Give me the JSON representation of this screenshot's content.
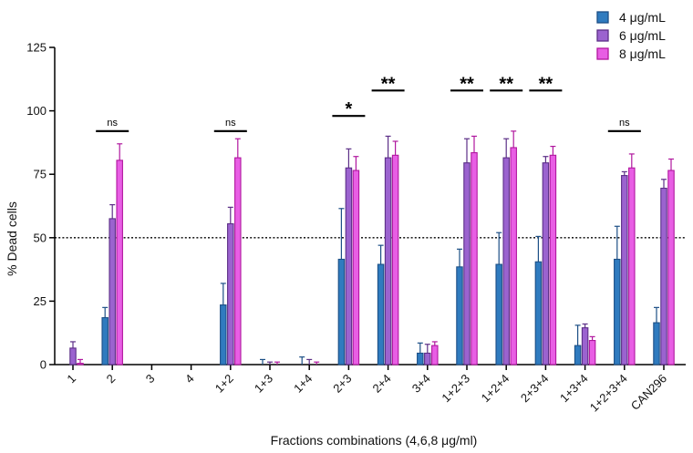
{
  "chart_data": {
    "type": "bar",
    "title": "",
    "xlabel": "Fractions combinations (4,6,8 μg/ml)",
    "ylabel": "% Dead cells",
    "ylim": [
      0,
      125
    ],
    "yticks": [
      0,
      25,
      50,
      75,
      100,
      125
    ],
    "reference_line": 50,
    "categories": [
      "1",
      "2",
      "3",
      "4",
      "1+2",
      "1+3",
      "1+4",
      "2+3",
      "2+4",
      "3+4",
      "1+2+3",
      "1+2+4",
      "2+3+4",
      "1+3+4",
      "1+2+3+4",
      "CAN296"
    ],
    "series": [
      {
        "name": "4 μg/mL",
        "color": "#2f7bbf",
        "edge": "#1c4f86",
        "values": [
          0,
          18.5,
          0,
          0,
          23.5,
          0,
          0,
          41.5,
          39.5,
          4.5,
          38.5,
          39.5,
          40.5,
          7.5,
          41.5,
          16.5
        ],
        "errors": [
          0,
          4,
          0,
          0,
          8.5,
          2,
          3,
          20,
          7.5,
          4,
          7,
          12.5,
          10,
          8,
          13,
          6
        ]
      },
      {
        "name": "6 μg/mL",
        "color": "#9b63cf",
        "edge": "#5c2f87",
        "values": [
          6.5,
          57.5,
          0,
          0,
          55.5,
          0,
          0,
          77.5,
          81.5,
          4.5,
          79.5,
          81.5,
          79.5,
          14.5,
          74.5,
          69.5
        ],
        "errors": [
          2.5,
          5.5,
          0,
          0,
          6.5,
          1,
          2,
          7.5,
          8.5,
          3.5,
          9.5,
          7.5,
          2.5,
          1.5,
          1.5,
          3.5
        ]
      },
      {
        "name": "8 μg/mL",
        "color": "#e85ee4",
        "edge": "#b0179e",
        "values": [
          0.5,
          80.5,
          0,
          0,
          81.5,
          0,
          0,
          76.5,
          82.5,
          7.5,
          83.5,
          85.5,
          82.5,
          9.5,
          77.5,
          76.5
        ],
        "errors": [
          1.5,
          6.5,
          0,
          0,
          7.5,
          1,
          1,
          5.5,
          5.5,
          1.5,
          6.5,
          6.5,
          3.5,
          1.5,
          5.5,
          4.5
        ]
      }
    ],
    "significance": [
      {
        "from": "2",
        "to": "2",
        "y": 92,
        "label": "ns"
      },
      {
        "from": "1+2",
        "to": "1+2",
        "y": 92,
        "label": "ns"
      },
      {
        "from": "2+3",
        "to": "2+3",
        "y": 98,
        "label": "*"
      },
      {
        "from": "2+4",
        "to": "2+4",
        "y": 108,
        "label": "**"
      },
      {
        "from": "1+2+3",
        "to": "1+2+3",
        "y": 108,
        "label": "**"
      },
      {
        "from": "1+2+4",
        "to": "1+2+4",
        "y": 108,
        "label": "**"
      },
      {
        "from": "2+3+4",
        "to": "2+3+4",
        "y": 108,
        "label": "**"
      },
      {
        "from": "1+2+3+4",
        "to": "1+2+3+4",
        "y": 92,
        "label": "ns"
      }
    ],
    "legend_position": "top-right",
    "grid": false
  }
}
